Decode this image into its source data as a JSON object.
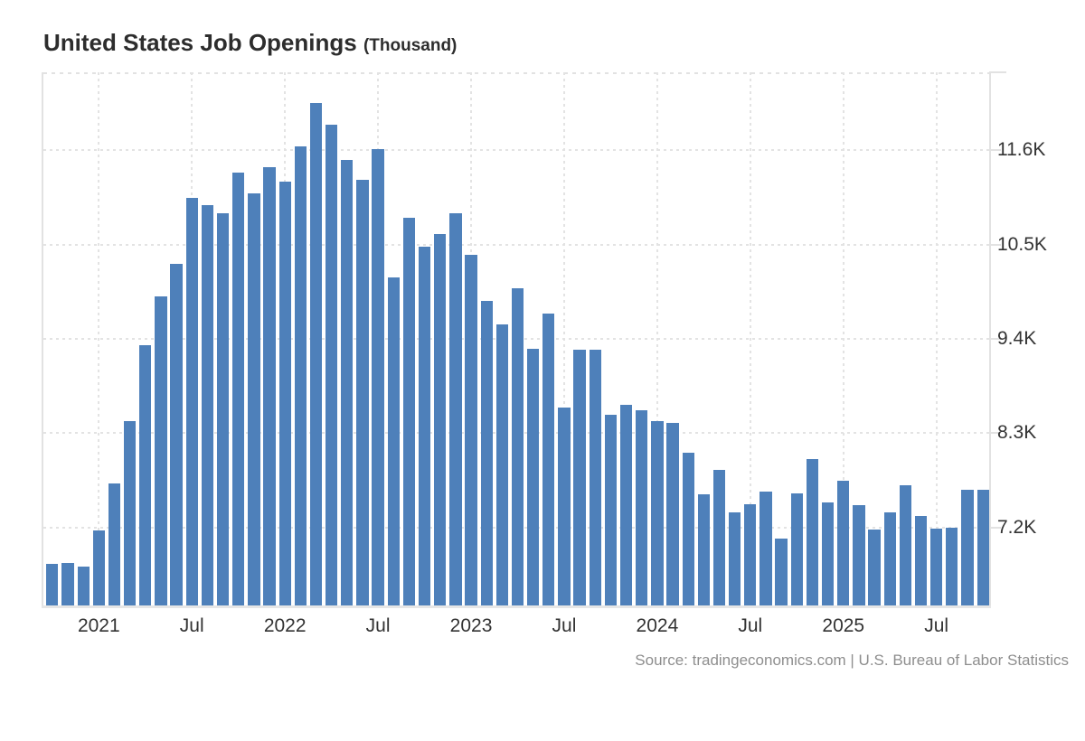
{
  "header": {
    "title": "United States Job Openings",
    "unit_suffix": "(Thousand)"
  },
  "source": {
    "text": "Source: tradingeconomics.com | U.S. Bureau of Labor Statistics"
  },
  "colors": {
    "bar": "#4e80ba",
    "grid": "#e3e3e3",
    "axis_text": "#333333",
    "title_text": "#2d2d2d",
    "source_text": "#8e8e8e"
  },
  "chart_data": {
    "type": "bar",
    "title": "United States Job Openings (Thousand)",
    "ylabel": "Job Openings (Thousand)",
    "xlabel": "",
    "grid": true,
    "legend": false,
    "ylim": [
      6290,
      12510
    ],
    "x": [
      "Oct 2020",
      "Nov 2020",
      "Dec 2020",
      "Jan 2021",
      "Feb 2021",
      "Mar 2021",
      "Apr 2021",
      "May 2021",
      "Jun 2021",
      "Jul 2021",
      "Aug 2021",
      "Sep 2021",
      "Oct 2021",
      "Nov 2021",
      "Dec 2021",
      "Jan 2022",
      "Feb 2022",
      "Mar 2022",
      "Apr 2022",
      "May 2022",
      "Jun 2022",
      "Jul 2022",
      "Aug 2022",
      "Sep 2022",
      "Oct 2022",
      "Nov 2022",
      "Dec 2022",
      "Jan 2023",
      "Feb 2023",
      "Mar 2023",
      "Apr 2023",
      "May 2023",
      "Jun 2023",
      "Jul 2023",
      "Aug 2023",
      "Sep 2023",
      "Oct 2023",
      "Nov 2023",
      "Dec 2023",
      "Jan 2024",
      "Feb 2024",
      "Mar 2024",
      "Apr 2024",
      "May 2024",
      "Jun 2024",
      "Jul 2024",
      "Aug 2024",
      "Sep 2024",
      "Oct 2024",
      "Nov 2024",
      "Dec 2024",
      "Jan 2025",
      "Feb 2025",
      "Mar 2025",
      "Apr 2025",
      "May 2025",
      "Jun 2025",
      "Jul 2025",
      "Aug 2025",
      "Sep 2025",
      "Oct 2025"
    ],
    "values": [
      6770,
      6790,
      6740,
      7160,
      7710,
      8440,
      9330,
      9900,
      10270,
      11050,
      10960,
      10870,
      11340,
      11100,
      11400,
      11230,
      11650,
      12150,
      11900,
      11490,
      11260,
      11610,
      10120,
      10810,
      10480,
      10620,
      10870,
      10380,
      9840,
      9570,
      9990,
      9280,
      9700,
      8600,
      9270,
      9270,
      8510,
      8630,
      8570,
      8440,
      8420,
      8070,
      7590,
      7870,
      7380,
      7470,
      7620,
      7070,
      7600,
      8000,
      7490,
      7750,
      7460,
      7180,
      7380,
      7690,
      7330,
      7190,
      7200,
      7640,
      7640
    ],
    "y_ticks": [
      {
        "label": "11.6K",
        "value": 11600
      },
      {
        "label": "10.5K",
        "value": 10500
      },
      {
        "label": "9.4K",
        "value": 9400
      },
      {
        "label": "8.3K",
        "value": 8300
      },
      {
        "label": "7.2K",
        "value": 7200
      }
    ],
    "x_ticks": [
      {
        "label": "2021",
        "index": 3
      },
      {
        "label": "Jul",
        "index": 9
      },
      {
        "label": "2022",
        "index": 15
      },
      {
        "label": "Jul",
        "index": 21
      },
      {
        "label": "2023",
        "index": 27
      },
      {
        "label": "Jul",
        "index": 33
      },
      {
        "label": "2024",
        "index": 39
      },
      {
        "label": "Jul",
        "index": 45
      },
      {
        "label": "2025",
        "index": 51
      },
      {
        "label": "Jul",
        "index": 57
      }
    ]
  }
}
